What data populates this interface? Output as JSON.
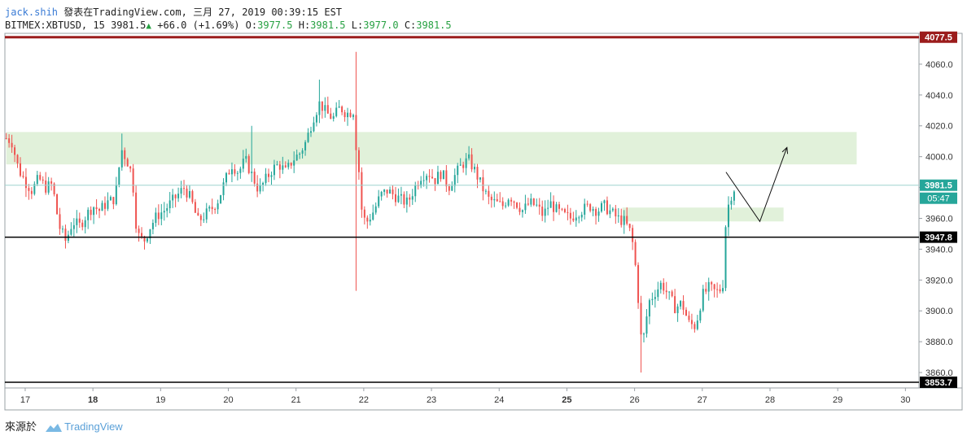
{
  "header": {
    "author": "jack.shih",
    "published_text": "發表在TradingView.com, 三月 27, 2019 00:39:15 EST",
    "symbol": "BITMEX:XBTUSD, 15",
    "last_price": "3981.5",
    "change_arrow": "▲",
    "change": "+66.0 (+1.69%)",
    "o_label": "O:",
    "o_value": "3977.5",
    "h_label": "H:",
    "h_value": "3981.5",
    "l_label": "L:",
    "l_value": "3977.0",
    "c_label": "C:",
    "c_value": "3981.5"
  },
  "footer": {
    "source_label": "來源於",
    "brand": "TradingView"
  },
  "colors": {
    "up": "#26a69a",
    "down": "#ef5350",
    "zone": "#dcefd4",
    "top_line": "#9b1c1c",
    "level_line": "#000000",
    "price_line": "#9fd3cf",
    "price_tag": "#26a69a"
  },
  "chart_data": {
    "type": "candlestick",
    "ylim": [
      3850,
      4080
    ],
    "xlim": [
      16.7,
      30.2
    ],
    "y_ticks": [
      "3860.0",
      "3880.0",
      "3900.0",
      "3920.0",
      "3940.0",
      "3960.0",
      "3980.0",
      "4000.0",
      "4020.0",
      "4040.0",
      "4060.0"
    ],
    "y_tick_values": [
      3860,
      3880,
      3900,
      3920,
      3940,
      3960,
      3980,
      4000,
      4020,
      4040,
      4060
    ],
    "x_ticks": [
      {
        "label": "17",
        "x": 17,
        "bold": false
      },
      {
        "label": "18",
        "x": 18,
        "bold": true
      },
      {
        "label": "19",
        "x": 19,
        "bold": false
      },
      {
        "label": "20",
        "x": 20,
        "bold": false
      },
      {
        "label": "21",
        "x": 21,
        "bold": false
      },
      {
        "label": "22",
        "x": 22,
        "bold": false
      },
      {
        "label": "23",
        "x": 23,
        "bold": false
      },
      {
        "label": "24",
        "x": 24,
        "bold": false
      },
      {
        "label": "25",
        "x": 25,
        "bold": true
      },
      {
        "label": "26",
        "x": 26,
        "bold": false
      },
      {
        "label": "27",
        "x": 27,
        "bold": false
      },
      {
        "label": "28",
        "x": 28,
        "bold": false
      },
      {
        "label": "29",
        "x": 29,
        "bold": false
      },
      {
        "label": "30",
        "x": 30,
        "bold": false
      }
    ],
    "horizontal_lines": [
      {
        "label": "4077.5",
        "value": 4077.5,
        "role": "top"
      },
      {
        "label": "3947.8",
        "value": 3947.8,
        "role": "level"
      },
      {
        "label": "3853.7",
        "value": 3853.7,
        "role": "level"
      }
    ],
    "last_price": {
      "label": "3981.5",
      "value": 3981.5,
      "countdown": "05:47"
    },
    "zones": [
      {
        "x_from": 16.72,
        "x_to": 29.28,
        "y_from": 3995,
        "y_to": 4016
      },
      {
        "x_from": 25.82,
        "x_to": 28.2,
        "y_from": 3958,
        "y_to": 3967
      }
    ],
    "drawn_path": [
      [
        27.35,
        3990
      ],
      [
        27.85,
        3958
      ],
      [
        28.25,
        4006
      ]
    ],
    "price_path": [
      [
        16.72,
        4012
      ],
      [
        16.8,
        4010
      ],
      [
        16.9,
        3992
      ],
      [
        17.0,
        3984
      ],
      [
        17.1,
        3978
      ],
      [
        17.2,
        3986
      ],
      [
        17.3,
        3980
      ],
      [
        17.4,
        3982
      ],
      [
        17.5,
        3955
      ],
      [
        17.6,
        3945
      ],
      [
        17.7,
        3958
      ],
      [
        17.8,
        3955
      ],
      [
        17.9,
        3962
      ],
      [
        18.0,
        3968
      ],
      [
        18.1,
        3965
      ],
      [
        18.2,
        3970
      ],
      [
        18.3,
        3972
      ],
      [
        18.35,
        3980
      ],
      [
        18.42,
        4005
      ],
      [
        18.5,
        3998
      ],
      [
        18.58,
        3988
      ],
      [
        18.65,
        3950
      ],
      [
        18.75,
        3945
      ],
      [
        18.85,
        3955
      ],
      [
        18.95,
        3962
      ],
      [
        19.05,
        3965
      ],
      [
        19.15,
        3970
      ],
      [
        19.25,
        3975
      ],
      [
        19.35,
        3980
      ],
      [
        19.45,
        3972
      ],
      [
        19.55,
        3958
      ],
      [
        19.65,
        3962
      ],
      [
        19.75,
        3966
      ],
      [
        19.85,
        3972
      ],
      [
        19.95,
        3984
      ],
      [
        20.05,
        3995
      ],
      [
        20.15,
        3990
      ],
      [
        20.25,
        3998
      ],
      [
        20.35,
        3988
      ],
      [
        20.45,
        3978
      ],
      [
        20.55,
        3985
      ],
      [
        20.65,
        3992
      ],
      [
        20.75,
        3995
      ],
      [
        20.85,
        3990
      ],
      [
        20.95,
        3998
      ],
      [
        21.05,
        4002
      ],
      [
        21.15,
        4010
      ],
      [
        21.25,
        4025
      ],
      [
        21.35,
        4035
      ],
      [
        21.45,
        4028
      ],
      [
        21.55,
        4025
      ],
      [
        21.65,
        4032
      ],
      [
        21.75,
        4028
      ],
      [
        21.85,
        4030
      ],
      [
        21.88,
        4010
      ],
      [
        21.93,
        3990
      ],
      [
        21.98,
        3960
      ],
      [
        22.05,
        3958
      ],
      [
        22.15,
        3965
      ],
      [
        22.25,
        3975
      ],
      [
        22.35,
        3978
      ],
      [
        22.45,
        3975
      ],
      [
        22.55,
        3972
      ],
      [
        22.65,
        3970
      ],
      [
        22.75,
        3980
      ],
      [
        22.85,
        3988
      ],
      [
        22.95,
        3990
      ],
      [
        23.05,
        3985
      ],
      [
        23.15,
        3990
      ],
      [
        23.25,
        3980
      ],
      [
        23.35,
        3988
      ],
      [
        23.45,
        3995
      ],
      [
        23.55,
        3998
      ],
      [
        23.65,
        3990
      ],
      [
        23.75,
        3980
      ],
      [
        23.85,
        3972
      ],
      [
        23.95,
        3970
      ],
      [
        24.05,
        3968
      ],
      [
        24.15,
        3975
      ],
      [
        24.25,
        3970
      ],
      [
        24.35,
        3965
      ],
      [
        24.45,
        3970
      ],
      [
        24.55,
        3968
      ],
      [
        24.65,
        3962
      ],
      [
        24.75,
        3970
      ],
      [
        24.85,
        3965
      ],
      [
        24.95,
        3962
      ],
      [
        25.05,
        3960
      ],
      [
        25.15,
        3964
      ],
      [
        25.25,
        3966
      ],
      [
        25.35,
        3968
      ],
      [
        25.45,
        3965
      ],
      [
        25.55,
        3968
      ],
      [
        25.65,
        3964
      ],
      [
        25.75,
        3960
      ],
      [
        25.85,
        3958
      ],
      [
        25.95,
        3950
      ],
      [
        26.0,
        3935
      ],
      [
        26.05,
        3910
      ],
      [
        26.1,
        3880
      ],
      [
        26.15,
        3885
      ],
      [
        26.2,
        3905
      ],
      [
        26.3,
        3912
      ],
      [
        26.4,
        3918
      ],
      [
        26.5,
        3910
      ],
      [
        26.6,
        3902
      ],
      [
        26.7,
        3905
      ],
      [
        26.8,
        3892
      ],
      [
        26.9,
        3890
      ],
      [
        27.0,
        3910
      ],
      [
        27.1,
        3915
      ],
      [
        27.2,
        3912
      ],
      [
        27.3,
        3915
      ],
      [
        27.35,
        3960
      ],
      [
        27.4,
        3972
      ],
      [
        27.45,
        3978
      ],
      [
        27.5,
        3981.5
      ]
    ]
  }
}
